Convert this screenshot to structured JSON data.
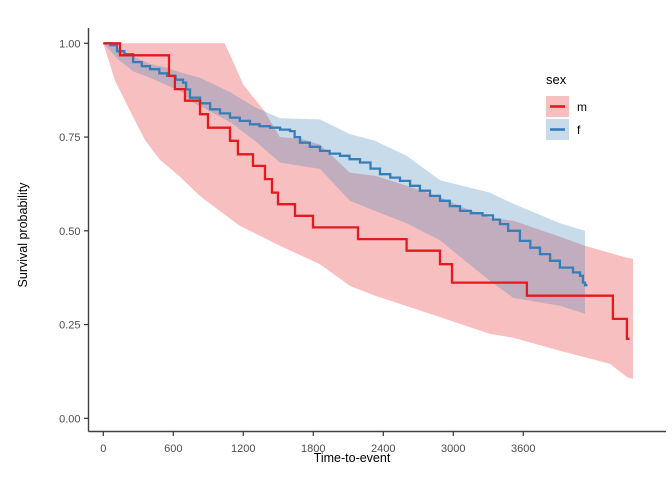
{
  "figure": {
    "background": "#ffffff",
    "axis_line_color": "#404040",
    "tick_mark_color": "#333333",
    "tick_text_color": "#4d4d4d"
  },
  "chart_data": {
    "type": "line",
    "subtype": "kaplan-meier-step-curves-with-confidence-bands",
    "title": "",
    "xlabel": "Time-to-event",
    "ylabel": "Survival probability",
    "xlim": [
      0,
      4823
    ],
    "ylim": [
      0,
      1.05
    ],
    "grid": "off",
    "x_ticks": [
      {
        "value": 0,
        "label": "0"
      },
      {
        "value": 600,
        "label": "600"
      },
      {
        "value": 1200,
        "label": "1200"
      },
      {
        "value": 1800,
        "label": "1800"
      },
      {
        "value": 2400,
        "label": "2400"
      },
      {
        "value": 3000,
        "label": "3000"
      },
      {
        "value": 3600,
        "label": "3600"
      }
    ],
    "y_ticks": [
      {
        "value": 0,
        "label": "0.00"
      },
      {
        "value": 0.25,
        "label": "0.25"
      },
      {
        "value": 0.5,
        "label": "0.50"
      },
      {
        "value": 0.75,
        "label": "0.75"
      },
      {
        "value": 1,
        "label": "1.00"
      }
    ],
    "legend": {
      "title": "sex",
      "position": "right-top",
      "entries": [
        {
          "label": "m",
          "line_color": "#E41A1C",
          "band_color": "rgba(228,26,28,0.28)"
        },
        {
          "label": "f",
          "line_color": "#377EB8",
          "band_color": "rgba(55,126,184,0.28)"
        }
      ]
    },
    "series": [
      {
        "name": "m",
        "color": "#E41A1C",
        "band_color": "rgba(228,26,28,0.28)",
        "steps": [
          [
            0,
            1.0
          ],
          [
            143,
            0.968
          ],
          [
            563,
            0.913
          ],
          [
            614,
            0.878
          ],
          [
            700,
            0.847
          ],
          [
            829,
            0.811
          ],
          [
            897,
            0.775
          ],
          [
            1086,
            0.74
          ],
          [
            1154,
            0.704
          ],
          [
            1283,
            0.673
          ],
          [
            1386,
            0.638
          ],
          [
            1446,
            0.602
          ],
          [
            1497,
            0.571
          ],
          [
            1643,
            0.54
          ],
          [
            1797,
            0.509
          ],
          [
            2183,
            0.478
          ],
          [
            2600,
            0.447
          ],
          [
            2886,
            0.411
          ],
          [
            2989,
            0.362
          ],
          [
            3631,
            0.327
          ],
          [
            4368,
            0.265
          ],
          [
            4488,
            0.212
          ],
          [
            4510,
            0.212
          ]
        ],
        "band_upper": [
          [
            0,
            1.0
          ],
          [
            1040,
            1.0
          ],
          [
            1100,
            0.96
          ],
          [
            1200,
            0.89
          ],
          [
            1380,
            0.82
          ],
          [
            1514,
            0.75
          ],
          [
            1700,
            0.745
          ],
          [
            1857,
            0.73
          ],
          [
            2114,
            0.655
          ],
          [
            2330,
            0.647
          ],
          [
            2600,
            0.62
          ],
          [
            2886,
            0.59
          ],
          [
            3100,
            0.56
          ],
          [
            3314,
            0.535
          ],
          [
            3514,
            0.527
          ],
          [
            3889,
            0.487
          ],
          [
            4129,
            0.46
          ],
          [
            4488,
            0.428
          ],
          [
            4540,
            0.425
          ]
        ],
        "band_lower": [
          [
            0,
            1.0
          ],
          [
            100,
            0.9
          ],
          [
            229,
            0.82
          ],
          [
            357,
            0.742
          ],
          [
            486,
            0.689
          ],
          [
            657,
            0.644
          ],
          [
            803,
            0.6
          ],
          [
            860,
            0.585
          ],
          [
            1171,
            0.513
          ],
          [
            1514,
            0.46
          ],
          [
            1857,
            0.411
          ],
          [
            2114,
            0.353
          ],
          [
            2330,
            0.327
          ],
          [
            2800,
            0.279
          ],
          [
            3314,
            0.225
          ],
          [
            3514,
            0.215
          ],
          [
            3914,
            0.18
          ],
          [
            4343,
            0.145
          ],
          [
            4488,
            0.11
          ],
          [
            4540,
            0.105
          ]
        ]
      },
      {
        "name": "f",
        "color": "#377EB8",
        "band_color": "rgba(55,126,184,0.28)",
        "steps": [
          [
            0,
            1.0
          ],
          [
            60,
            0.995
          ],
          [
            117,
            0.979
          ],
          [
            180,
            0.971
          ],
          [
            255,
            0.95
          ],
          [
            330,
            0.939
          ],
          [
            400,
            0.931
          ],
          [
            480,
            0.92
          ],
          [
            546,
            0.913
          ],
          [
            620,
            0.903
          ],
          [
            683,
            0.895
          ],
          [
            710,
            0.877
          ],
          [
            743,
            0.855
          ],
          [
            830,
            0.84
          ],
          [
            915,
            0.824
          ],
          [
            1000,
            0.813
          ],
          [
            1086,
            0.802
          ],
          [
            1170,
            0.793
          ],
          [
            1257,
            0.784
          ],
          [
            1340,
            0.779
          ],
          [
            1429,
            0.775
          ],
          [
            1515,
            0.77
          ],
          [
            1600,
            0.766
          ],
          [
            1640,
            0.75
          ],
          [
            1686,
            0.735
          ],
          [
            1770,
            0.724
          ],
          [
            1857,
            0.713
          ],
          [
            1940,
            0.706
          ],
          [
            2029,
            0.7
          ],
          [
            2110,
            0.691
          ],
          [
            2200,
            0.682
          ],
          [
            2290,
            0.666
          ],
          [
            2372,
            0.651
          ],
          [
            2460,
            0.642
          ],
          [
            2543,
            0.633
          ],
          [
            2630,
            0.62
          ],
          [
            2714,
            0.607
          ],
          [
            2800,
            0.593
          ],
          [
            2886,
            0.58
          ],
          [
            2970,
            0.566
          ],
          [
            3057,
            0.553
          ],
          [
            3150,
            0.547
          ],
          [
            3250,
            0.541
          ],
          [
            3340,
            0.53
          ],
          [
            3400,
            0.518
          ],
          [
            3470,
            0.5
          ],
          [
            3571,
            0.473
          ],
          [
            3660,
            0.455
          ],
          [
            3743,
            0.438
          ],
          [
            3830,
            0.42
          ],
          [
            3914,
            0.402
          ],
          [
            4026,
            0.389
          ],
          [
            4086,
            0.38
          ],
          [
            4111,
            0.362
          ],
          [
            4129,
            0.355
          ],
          [
            4150,
            0.355
          ]
        ],
        "band_upper": [
          [
            0,
            1.0
          ],
          [
            117,
            0.99
          ],
          [
            255,
            0.965
          ],
          [
            400,
            0.945
          ],
          [
            546,
            0.935
          ],
          [
            683,
            0.92
          ],
          [
            829,
            0.908
          ],
          [
            1086,
            0.87
          ],
          [
            1300,
            0.83
          ],
          [
            1514,
            0.8
          ],
          [
            1857,
            0.797
          ],
          [
            2114,
            0.758
          ],
          [
            2330,
            0.74
          ],
          [
            2600,
            0.7
          ],
          [
            2886,
            0.635
          ],
          [
            3314,
            0.602
          ],
          [
            3514,
            0.572
          ],
          [
            3914,
            0.52
          ],
          [
            4129,
            0.5
          ]
        ],
        "band_lower": [
          [
            0,
            1.0
          ],
          [
            117,
            0.96
          ],
          [
            255,
            0.925
          ],
          [
            400,
            0.908
          ],
          [
            546,
            0.888
          ],
          [
            683,
            0.868
          ],
          [
            743,
            0.845
          ],
          [
            829,
            0.833
          ],
          [
            1086,
            0.79
          ],
          [
            1300,
            0.74
          ],
          [
            1514,
            0.682
          ],
          [
            1857,
            0.665
          ],
          [
            2114,
            0.58
          ],
          [
            2330,
            0.553
          ],
          [
            2600,
            0.52
          ],
          [
            2886,
            0.475
          ],
          [
            3100,
            0.42
          ],
          [
            3314,
            0.367
          ],
          [
            3514,
            0.321
          ],
          [
            3914,
            0.3
          ],
          [
            4129,
            0.279
          ]
        ]
      }
    ]
  }
}
